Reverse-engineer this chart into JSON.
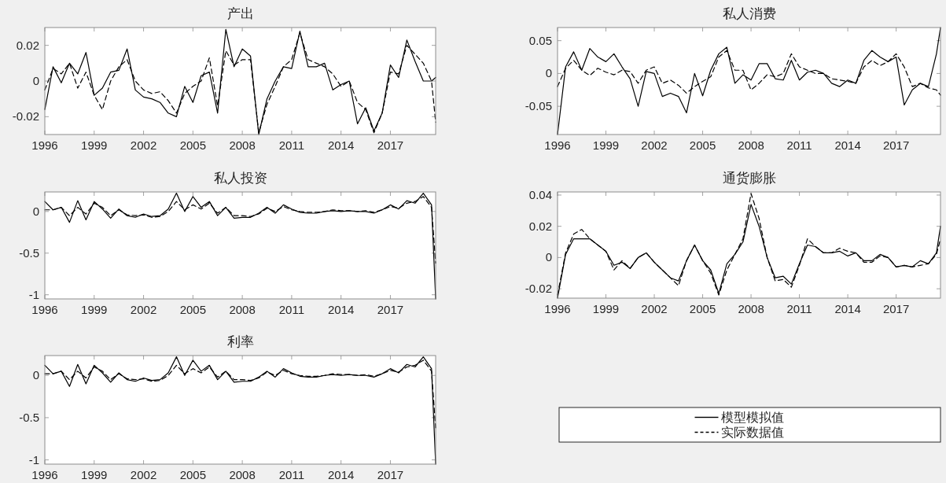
{
  "chart_data": [
    {
      "type": "line",
      "title": "产出",
      "x": [
        1996,
        1996.5,
        1997,
        1997.5,
        1998,
        1998.5,
        1999,
        1999.5,
        2000,
        2000.5,
        2001,
        2001.5,
        2002,
        2002.5,
        2003,
        2003.5,
        2004,
        2004.5,
        2005,
        2005.5,
        2006,
        2006.5,
        2007,
        2007.5,
        2008,
        2008.5,
        2009,
        2009.5,
        2010,
        2010.5,
        2011,
        2011.5,
        2012,
        2012.5,
        2013,
        2013.5,
        2014,
        2014.5,
        2015,
        2015.5,
        2016,
        2016.5,
        2017,
        2017.5,
        2018,
        2018.5,
        2019,
        2019.5,
        2019.75
      ],
      "xlim": [
        1996,
        2019.75
      ],
      "xticks": [
        1996,
        1999,
        2002,
        2005,
        2008,
        2011,
        2014,
        2017
      ],
      "ylim": [
        -0.03,
        0.03
      ],
      "yticks": [
        -0.02,
        0,
        0.02
      ],
      "series": [
        {
          "color": "#000000",
          "line_style": "solid",
          "values": [
            -0.016,
            0.008,
            -0.001,
            0.01,
            0.004,
            0.016,
            -0.008,
            -0.004,
            0.005,
            0.006,
            0.018,
            -0.005,
            -0.009,
            -0.01,
            -0.012,
            -0.018,
            -0.02,
            -0.003,
            -0.012,
            0.003,
            0.005,
            -0.018,
            0.029,
            0.008,
            0.018,
            0.014,
            -0.03,
            -0.01,
            0.0,
            0.008,
            0.007,
            0.028,
            0.008,
            0.008,
            0.01,
            -0.005,
            -0.002,
            0.0,
            -0.024,
            -0.015,
            -0.028,
            -0.018,
            0.009,
            0.002,
            0.023,
            0.011,
            0.0,
            0.0,
            0.002
          ]
        },
        {
          "color": "#000000",
          "line_style": "dashed",
          "values": [
            -0.005,
            0.007,
            0.004,
            0.01,
            -0.004,
            0.005,
            -0.008,
            -0.016,
            0.0,
            0.008,
            0.012,
            0.0,
            -0.005,
            -0.007,
            -0.006,
            -0.011,
            -0.018,
            -0.007,
            -0.003,
            0.0,
            0.013,
            -0.014,
            0.017,
            0.009,
            0.012,
            0.012,
            -0.029,
            -0.013,
            -0.003,
            0.008,
            0.012,
            0.027,
            0.012,
            0.01,
            0.008,
            0.004,
            -0.003,
            0.0,
            -0.012,
            -0.016,
            -0.029,
            -0.018,
            0.005,
            0.004,
            0.02,
            0.015,
            0.01,
            0.0,
            -0.023
          ]
        }
      ]
    },
    {
      "type": "line",
      "title": "私人消费",
      "x": [
        1996,
        1996.5,
        1997,
        1997.5,
        1998,
        1998.5,
        1999,
        1999.5,
        2000,
        2000.5,
        2001,
        2001.5,
        2002,
        2002.5,
        2003,
        2003.5,
        2004,
        2004.5,
        2005,
        2005.5,
        2006,
        2006.5,
        2007,
        2007.5,
        2008,
        2008.5,
        2009,
        2009.5,
        2010,
        2010.5,
        2011,
        2011.5,
        2012,
        2012.5,
        2013,
        2013.5,
        2014,
        2014.5,
        2015,
        2015.5,
        2016,
        2016.5,
        2017,
        2017.5,
        2018,
        2018.5,
        2019,
        2019.5,
        2019.75
      ],
      "xlim": [
        1996,
        2019.75
      ],
      "xticks": [
        1996,
        1999,
        2002,
        2005,
        2008,
        2011,
        2014,
        2017
      ],
      "ylim": [
        -0.093,
        0.07
      ],
      "yticks": [
        -0.05,
        0,
        0.05
      ],
      "series": [
        {
          "color": "#000000",
          "line_style": "solid",
          "values": [
            -0.093,
            0.01,
            0.033,
            0.005,
            0.038,
            0.025,
            0.018,
            0.03,
            0.01,
            -0.008,
            -0.05,
            0.003,
            0.0,
            -0.035,
            -0.03,
            -0.035,
            -0.06,
            0.0,
            -0.034,
            0.005,
            0.03,
            0.04,
            -0.015,
            -0.002,
            -0.01,
            0.015,
            0.015,
            -0.008,
            -0.01,
            0.02,
            -0.01,
            0.002,
            0.005,
            0.0,
            -0.015,
            -0.02,
            -0.01,
            -0.015,
            0.02,
            0.035,
            0.025,
            0.018,
            0.025,
            -0.048,
            -0.025,
            -0.015,
            -0.02,
            0.03,
            0.07
          ]
        },
        {
          "color": "#000000",
          "line_style": "dashed",
          "values": [
            -0.02,
            0.008,
            0.02,
            0.005,
            -0.003,
            0.008,
            0.002,
            -0.002,
            0.005,
            0.003,
            -0.015,
            0.005,
            0.01,
            -0.015,
            -0.01,
            -0.018,
            -0.03,
            -0.02,
            -0.012,
            -0.005,
            0.025,
            0.035,
            0.005,
            0.005,
            -0.025,
            -0.015,
            -0.002,
            -0.005,
            0.0,
            0.03,
            0.01,
            0.005,
            0.0,
            0.0,
            -0.008,
            -0.01,
            -0.012,
            -0.015,
            0.01,
            0.02,
            0.012,
            0.018,
            0.03,
            0.01,
            -0.02,
            -0.015,
            -0.022,
            -0.025,
            -0.033
          ]
        }
      ]
    },
    {
      "type": "line",
      "title": "私人投资",
      "x": [
        1996,
        1996.5,
        1997,
        1997.5,
        1998,
        1998.5,
        1999,
        1999.5,
        2000,
        2000.5,
        2001,
        2001.5,
        2002,
        2002.5,
        2003,
        2003.5,
        2004,
        2004.5,
        2005,
        2005.5,
        2006,
        2006.5,
        2007,
        2007.5,
        2008,
        2008.5,
        2009,
        2009.5,
        2010,
        2010.5,
        2011,
        2011.5,
        2012,
        2012.5,
        2013,
        2013.5,
        2014,
        2014.5,
        2015,
        2015.5,
        2016,
        2016.5,
        2017,
        2017.5,
        2018,
        2018.5,
        2019,
        2019.5,
        2019.75
      ],
      "xlim": [
        1996,
        2019.75
      ],
      "xticks": [
        1996,
        1999,
        2002,
        2005,
        2008,
        2011,
        2014,
        2017
      ],
      "ylim": [
        -1.05,
        0.235
      ],
      "yticks": [
        -1,
        -0.5,
        0
      ],
      "series": [
        {
          "color": "#000000",
          "line_style": "solid",
          "values": [
            0.12,
            0.02,
            0.05,
            -0.13,
            0.13,
            -0.1,
            0.12,
            0.03,
            -0.08,
            0.03,
            -0.05,
            -0.07,
            -0.03,
            -0.06,
            -0.05,
            0.03,
            0.22,
            0.0,
            0.18,
            0.05,
            0.12,
            -0.05,
            0.05,
            -0.08,
            -0.07,
            -0.07,
            -0.02,
            0.05,
            -0.02,
            0.08,
            0.03,
            -0.01,
            -0.02,
            -0.02,
            0.0,
            0.01,
            0.0,
            0.01,
            0.0,
            0.0,
            -0.02,
            0.02,
            0.08,
            0.03,
            0.13,
            0.1,
            0.22,
            0.08,
            -1.05
          ]
        },
        {
          "color": "#000000",
          "line_style": "dashed",
          "values": [
            0.02,
            0.02,
            0.05,
            -0.05,
            0.05,
            -0.03,
            0.1,
            0.05,
            -0.05,
            0.02,
            -0.04,
            -0.05,
            -0.04,
            -0.07,
            -0.06,
            0.0,
            0.12,
            0.02,
            0.08,
            0.03,
            0.1,
            -0.02,
            0.05,
            -0.05,
            -0.05,
            -0.06,
            -0.03,
            0.04,
            0.0,
            0.06,
            0.02,
            0.0,
            -0.01,
            -0.01,
            0.0,
            0.02,
            0.01,
            0.01,
            0.0,
            0.01,
            -0.01,
            0.02,
            0.06,
            0.04,
            0.1,
            0.12,
            0.18,
            0.05,
            -0.62
          ]
        }
      ]
    },
    {
      "type": "line",
      "title": "通货膨胀",
      "x": [
        1996,
        1996.5,
        1997,
        1997.5,
        1998,
        1998.5,
        1999,
        1999.5,
        2000,
        2000.5,
        2001,
        2001.5,
        2002,
        2002.5,
        2003,
        2003.5,
        2004,
        2004.5,
        2005,
        2005.5,
        2006,
        2006.5,
        2007,
        2007.5,
        2008,
        2008.5,
        2009,
        2009.5,
        2010,
        2010.5,
        2011,
        2011.5,
        2012,
        2012.5,
        2013,
        2013.5,
        2014,
        2014.5,
        2015,
        2015.5,
        2016,
        2016.5,
        2017,
        2017.5,
        2018,
        2018.5,
        2019,
        2019.5,
        2019.75
      ],
      "xlim": [
        1996,
        2019.75
      ],
      "xticks": [
        1996,
        1999,
        2002,
        2005,
        2008,
        2011,
        2014,
        2017
      ],
      "ylim": [
        -0.026,
        0.042
      ],
      "yticks": [
        -0.02,
        0,
        0.02,
        0.04
      ],
      "series": [
        {
          "color": "#000000",
          "line_style": "solid",
          "values": [
            -0.026,
            0.002,
            0.012,
            0.012,
            0.012,
            0.008,
            0.004,
            -0.005,
            -0.003,
            -0.007,
            0.0,
            0.003,
            -0.003,
            -0.008,
            -0.013,
            -0.015,
            -0.002,
            0.008,
            -0.002,
            -0.008,
            -0.023,
            -0.004,
            0.002,
            0.01,
            0.034,
            0.02,
            0.0,
            -0.013,
            -0.012,
            -0.017,
            -0.004,
            0.008,
            0.007,
            0.003,
            0.003,
            0.004,
            0.001,
            0.003,
            -0.002,
            -0.002,
            0.002,
            0.0,
            -0.006,
            -0.005,
            -0.006,
            -0.002,
            -0.004,
            0.003,
            0.02
          ]
        },
        {
          "color": "#000000",
          "line_style": "dashed",
          "values": [
            -0.024,
            0.003,
            0.015,
            0.018,
            0.012,
            0.008,
            0.004,
            -0.008,
            -0.002,
            -0.007,
            0.0,
            0.003,
            -0.003,
            -0.008,
            -0.013,
            -0.018,
            -0.002,
            0.008,
            -0.002,
            -0.01,
            -0.024,
            -0.008,
            0.002,
            0.012,
            0.041,
            0.025,
            0.0,
            -0.015,
            -0.014,
            -0.019,
            -0.005,
            0.012,
            0.007,
            0.003,
            0.003,
            0.006,
            0.004,
            0.003,
            -0.003,
            -0.003,
            0.001,
            0.0,
            -0.006,
            -0.005,
            -0.006,
            -0.005,
            -0.004,
            0.002,
            0.012
          ]
        }
      ]
    },
    {
      "type": "line",
      "title": "利率",
      "x": [
        1996,
        1996.5,
        1997,
        1997.5,
        1998,
        1998.5,
        1999,
        1999.5,
        2000,
        2000.5,
        2001,
        2001.5,
        2002,
        2002.5,
        2003,
        2003.5,
        2004,
        2004.5,
        2005,
        2005.5,
        2006,
        2006.5,
        2007,
        2007.5,
        2008,
        2008.5,
        2009,
        2009.5,
        2010,
        2010.5,
        2011,
        2011.5,
        2012,
        2012.5,
        2013,
        2013.5,
        2014,
        2014.5,
        2015,
        2015.5,
        2016,
        2016.5,
        2017,
        2017.5,
        2018,
        2018.5,
        2019,
        2019.5,
        2019.75
      ],
      "xlim": [
        1996,
        2019.75
      ],
      "xticks": [
        1996,
        1999,
        2002,
        2005,
        2008,
        2011,
        2014,
        2017
      ],
      "ylim": [
        -1.05,
        0.235
      ],
      "yticks": [
        -1,
        -0.5,
        0
      ],
      "legend": "right",
      "series": [
        {
          "name": "模型模拟值",
          "color": "#000000",
          "line_style": "solid",
          "values": [
            0.12,
            0.02,
            0.05,
            -0.13,
            0.13,
            -0.1,
            0.12,
            0.03,
            -0.08,
            0.03,
            -0.05,
            -0.07,
            -0.03,
            -0.06,
            -0.05,
            0.03,
            0.22,
            0.0,
            0.18,
            0.05,
            0.12,
            -0.05,
            0.05,
            -0.08,
            -0.07,
            -0.07,
            -0.02,
            0.05,
            -0.02,
            0.08,
            0.03,
            -0.01,
            -0.02,
            -0.02,
            0.0,
            0.01,
            0.0,
            0.01,
            0.0,
            0.0,
            -0.02,
            0.02,
            0.08,
            0.03,
            0.13,
            0.1,
            0.22,
            0.08,
            -1.05
          ]
        },
        {
          "name": "实际数据值",
          "color": "#000000",
          "line_style": "dashed",
          "values": [
            0.02,
            0.02,
            0.05,
            -0.05,
            0.05,
            -0.03,
            0.1,
            0.05,
            -0.05,
            0.02,
            -0.04,
            -0.05,
            -0.04,
            -0.07,
            -0.06,
            0.0,
            0.12,
            0.02,
            0.08,
            0.03,
            0.1,
            -0.02,
            0.05,
            -0.05,
            -0.05,
            -0.06,
            -0.03,
            0.04,
            0.0,
            0.06,
            0.02,
            0.0,
            -0.01,
            -0.01,
            0.0,
            0.02,
            0.01,
            0.01,
            0.0,
            0.01,
            -0.01,
            0.02,
            0.06,
            0.04,
            0.1,
            0.12,
            0.18,
            0.05,
            -0.62
          ]
        }
      ]
    }
  ]
}
